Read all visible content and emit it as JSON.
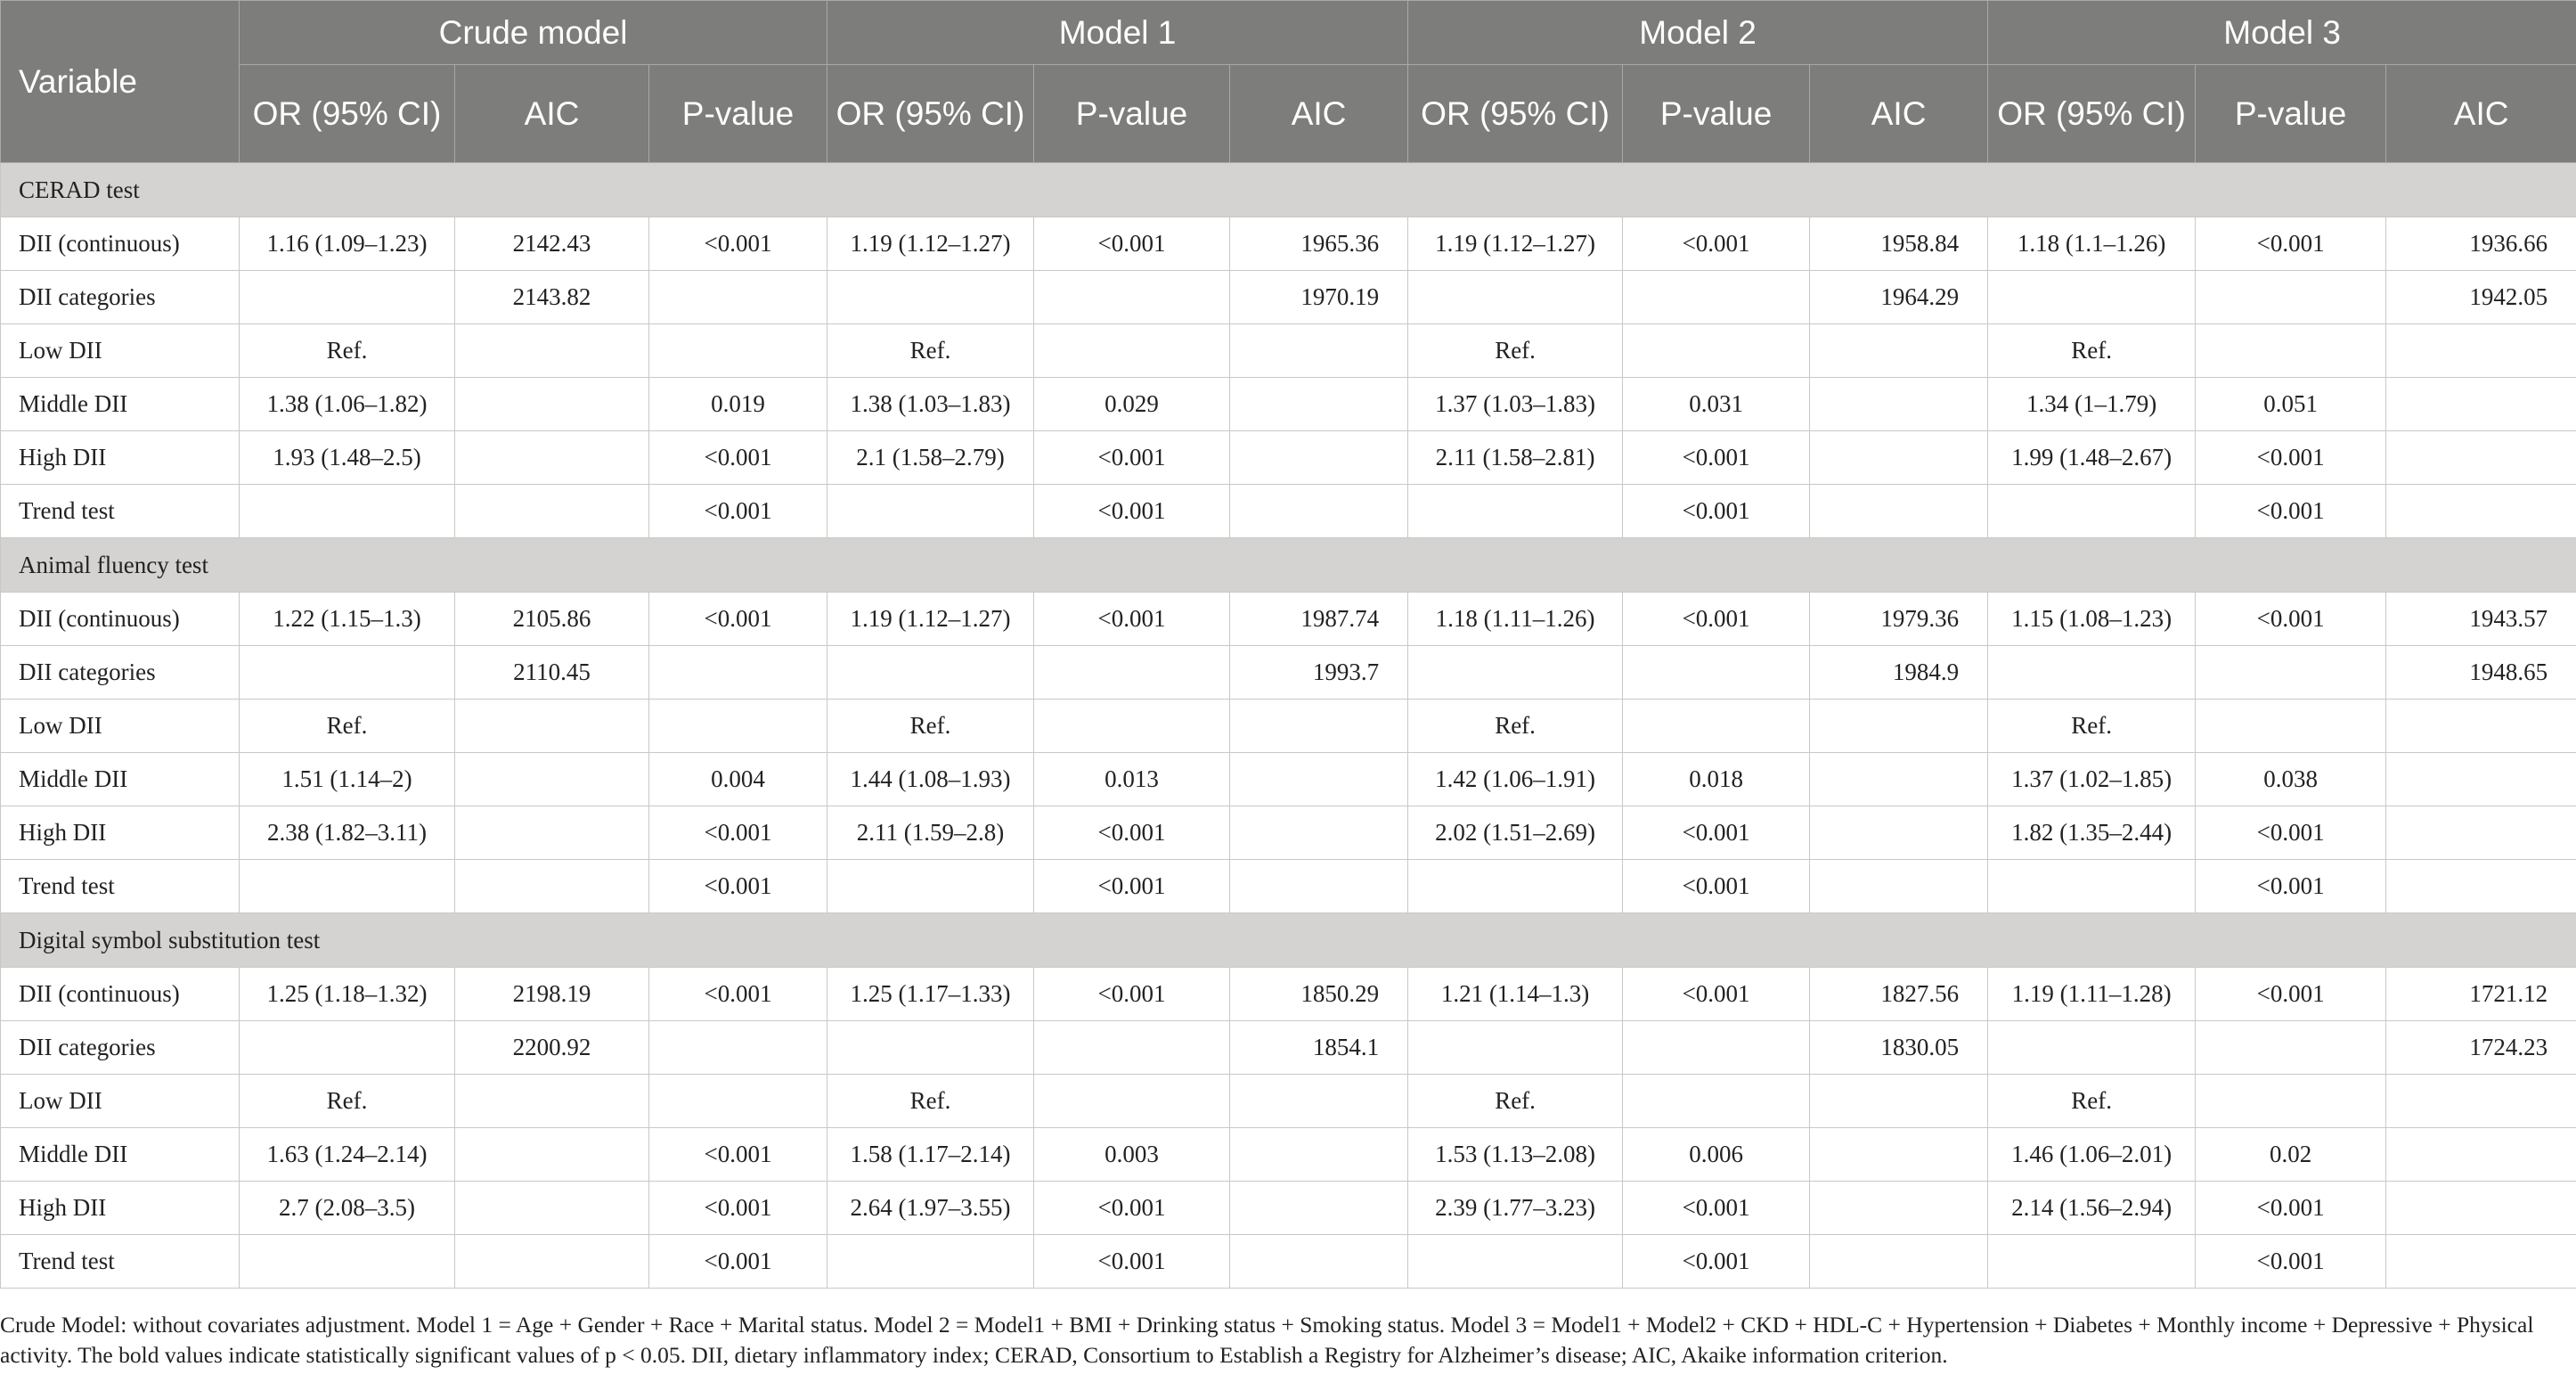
{
  "header": {
    "variable": "Variable",
    "models": [
      "Crude model",
      "Model 1",
      "Model 2",
      "Model 3"
    ],
    "sub": [
      [
        "OR (95% CI)",
        "AIC",
        "P-value"
      ],
      [
        "OR (95% CI)",
        "P-value",
        "AIC"
      ],
      [
        "OR (95% CI)",
        "P-value",
        "AIC"
      ],
      [
        "OR (95% CI)",
        "P-value",
        "AIC"
      ]
    ]
  },
  "sections": [
    {
      "title": "CERAD test",
      "rows": [
        [
          "DII (continuous)",
          "1.16 (1.09–1.23)",
          "2142.43",
          "<0.001",
          "1.19 (1.12–1.27)",
          "<0.001",
          "1965.36",
          "1.19 (1.12–1.27)",
          "<0.001",
          "1958.84",
          "1.18 (1.1–1.26)",
          "<0.001",
          "1936.66"
        ],
        [
          "DII categories",
          "",
          "2143.82",
          "",
          "",
          "",
          "1970.19",
          "",
          "",
          "1964.29",
          "",
          "",
          "1942.05"
        ],
        [
          "Low DII",
          "Ref.",
          "",
          "",
          "Ref.",
          "",
          "",
          "Ref.",
          "",
          "",
          "Ref.",
          "",
          ""
        ],
        [
          "Middle DII",
          "1.38 (1.06–1.82)",
          "",
          "0.019",
          "1.38 (1.03–1.83)",
          "0.029",
          "",
          "1.37 (1.03–1.83)",
          "0.031",
          "",
          "1.34 (1–1.79)",
          "0.051",
          ""
        ],
        [
          "High DII",
          "1.93 (1.48–2.5)",
          "",
          "<0.001",
          "2.1 (1.58–2.79)",
          "<0.001",
          "",
          "2.11 (1.58–2.81)",
          "<0.001",
          "",
          "1.99 (1.48–2.67)",
          "<0.001",
          ""
        ],
        [
          "Trend test",
          "",
          "",
          "<0.001",
          "",
          "<0.001",
          "",
          "",
          "<0.001",
          "",
          "",
          "<0.001",
          ""
        ]
      ]
    },
    {
      "title": "Animal fluency test",
      "rows": [
        [
          "DII (continuous)",
          "1.22 (1.15–1.3)",
          "2105.86",
          "<0.001",
          "1.19 (1.12–1.27)",
          "<0.001",
          "1987.74",
          "1.18 (1.11–1.26)",
          "<0.001",
          "1979.36",
          "1.15 (1.08–1.23)",
          "<0.001",
          "1943.57"
        ],
        [
          "DII categories",
          "",
          "2110.45",
          "",
          "",
          "",
          "1993.7",
          "",
          "",
          "1984.9",
          "",
          "",
          "1948.65"
        ],
        [
          "Low DII",
          "Ref.",
          "",
          "",
          "Ref.",
          "",
          "",
          "Ref.",
          "",
          "",
          "Ref.",
          "",
          ""
        ],
        [
          "Middle DII",
          "1.51 (1.14–2)",
          "",
          "0.004",
          "1.44 (1.08–1.93)",
          "0.013",
          "",
          "1.42 (1.06–1.91)",
          "0.018",
          "",
          "1.37 (1.02–1.85)",
          "0.038",
          ""
        ],
        [
          "High DII",
          "2.38 (1.82–3.11)",
          "",
          "<0.001",
          "2.11 (1.59–2.8)",
          "<0.001",
          "",
          "2.02 (1.51–2.69)",
          "<0.001",
          "",
          "1.82 (1.35–2.44)",
          "<0.001",
          ""
        ],
        [
          "Trend test",
          "",
          "",
          "<0.001",
          "",
          "<0.001",
          "",
          "",
          "<0.001",
          "",
          "",
          "<0.001",
          ""
        ]
      ]
    },
    {
      "title": "Digital symbol substitution test",
      "rows": [
        [
          "DII (continuous)",
          "1.25 (1.18–1.32)",
          "2198.19",
          "<0.001",
          "1.25 (1.17–1.33)",
          "<0.001",
          "1850.29",
          "1.21 (1.14–1.3)",
          "<0.001",
          "1827.56",
          "1.19 (1.11–1.28)",
          "<0.001",
          "1721.12"
        ],
        [
          "DII categories",
          "",
          "2200.92",
          "",
          "",
          "",
          "1854.1",
          "",
          "",
          "1830.05",
          "",
          "",
          "1724.23"
        ],
        [
          "Low DII",
          "Ref.",
          "",
          "",
          "Ref.",
          "",
          "",
          "Ref.",
          "",
          "",
          "Ref.",
          "",
          ""
        ],
        [
          "Middle DII",
          "1.63 (1.24–2.14)",
          "",
          "<0.001",
          "1.58 (1.17–2.14)",
          "0.003",
          "",
          "1.53 (1.13–2.08)",
          "0.006",
          "",
          "1.46 (1.06–2.01)",
          "0.02",
          ""
        ],
        [
          "High DII",
          "2.7 (2.08–3.5)",
          "",
          "<0.001",
          "2.64 (1.97–3.55)",
          "<0.001",
          "",
          "2.39 (1.77–3.23)",
          "<0.001",
          "",
          "2.14 (1.56–2.94)",
          "<0.001",
          ""
        ],
        [
          "Trend test",
          "",
          "",
          "<0.001",
          "",
          "<0.001",
          "",
          "",
          "<0.001",
          "",
          "",
          "<0.001",
          ""
        ]
      ]
    }
  ],
  "footnote": "Crude Model: without covariates adjustment. Model 1 = Age + Gender + Race + Marital status. Model 2 = Model1 + BMI + Drinking status + Smoking status. Model 3 = Model1 + Model2 + CKD + HDL-C + Hypertension + Diabetes + Monthly income + Depressive + Physical activity. The bold values indicate statistically significant values of p < 0.05. DII, dietary inflammatory index; CERAD, Consortium to Establish a Registry for Alzheimer’s disease; AIC, Akaike information criterion."
}
